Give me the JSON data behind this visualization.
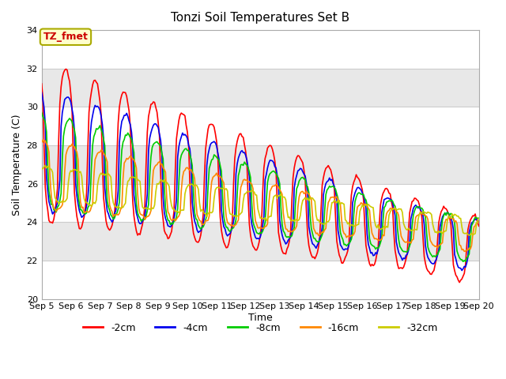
{
  "title": "Tonzi Soil Temperatures Set B",
  "xlabel": "Time",
  "ylabel": "Soil Temperature (C)",
  "ylim": [
    20,
    34
  ],
  "yticks": [
    20,
    22,
    24,
    26,
    28,
    30,
    32,
    34
  ],
  "xtick_labels": [
    "Sep 5",
    "Sep 6",
    "Sep 7",
    "Sep 8",
    "Sep 9",
    "Sep 10",
    "Sep 11",
    "Sep 12",
    "Sep 13",
    "Sep 14",
    "Sep 15",
    "Sep 16",
    "Sep 17",
    "Sep 18",
    "Sep 19",
    "Sep 20"
  ],
  "series_colors": [
    "#ff0000",
    "#0000ee",
    "#00cc00",
    "#ff8800",
    "#cccc00"
  ],
  "series_labels": [
    "-2cm",
    "-4cm",
    "-8cm",
    "-16cm",
    "-32cm"
  ],
  "annotation_text": "TZ_fmet",
  "annotation_bbox_fc": "#ffffcc",
  "annotation_bbox_ec": "#aaaa00",
  "annotation_color": "#cc0000",
  "band_colors": [
    "#ffffff",
    "#e8e8e8"
  ],
  "band_ranges": [
    [
      32,
      34
    ],
    [
      30,
      32
    ],
    [
      28,
      30
    ],
    [
      26,
      28
    ],
    [
      24,
      26
    ],
    [
      22,
      24
    ],
    [
      20,
      22
    ]
  ],
  "band_pattern": [
    0,
    1,
    0,
    1,
    0,
    1,
    0
  ]
}
